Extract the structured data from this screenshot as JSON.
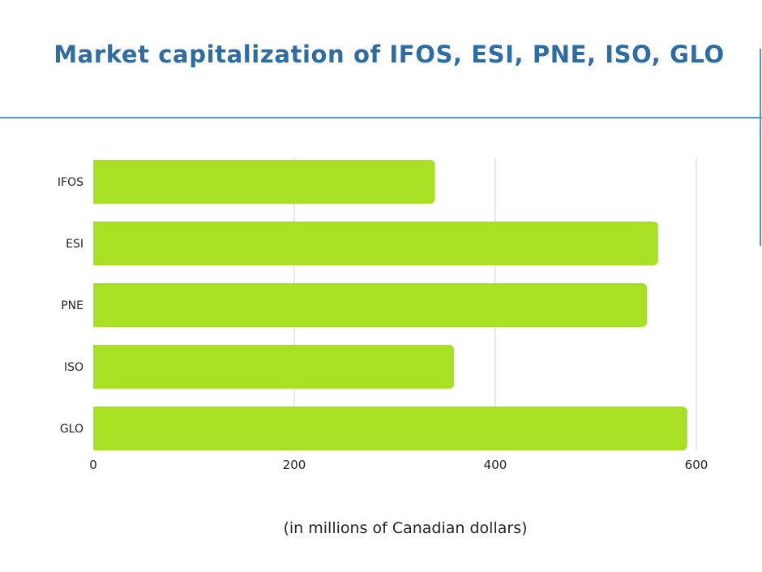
{
  "chart_data": {
    "type": "bar",
    "orientation": "horizontal",
    "title": "Market capitalization of IFOS, ESI, PNE, ISO, GLO",
    "categories": [
      "IFOS",
      "ESI",
      "PNE",
      "ISO",
      "GLO"
    ],
    "values": [
      340,
      562,
      551,
      359,
      591
    ],
    "xlim": [
      0,
      600
    ],
    "xticks": [
      "0",
      "200",
      "400",
      "600"
    ],
    "xlabel": "(in millions of Canadian dollars)",
    "grid": "vertical",
    "bar_color": "#a8e024",
    "grid_color": "#e2e2e2",
    "title_color": "#2e6da4",
    "rule_color": "#4a9bd1"
  }
}
